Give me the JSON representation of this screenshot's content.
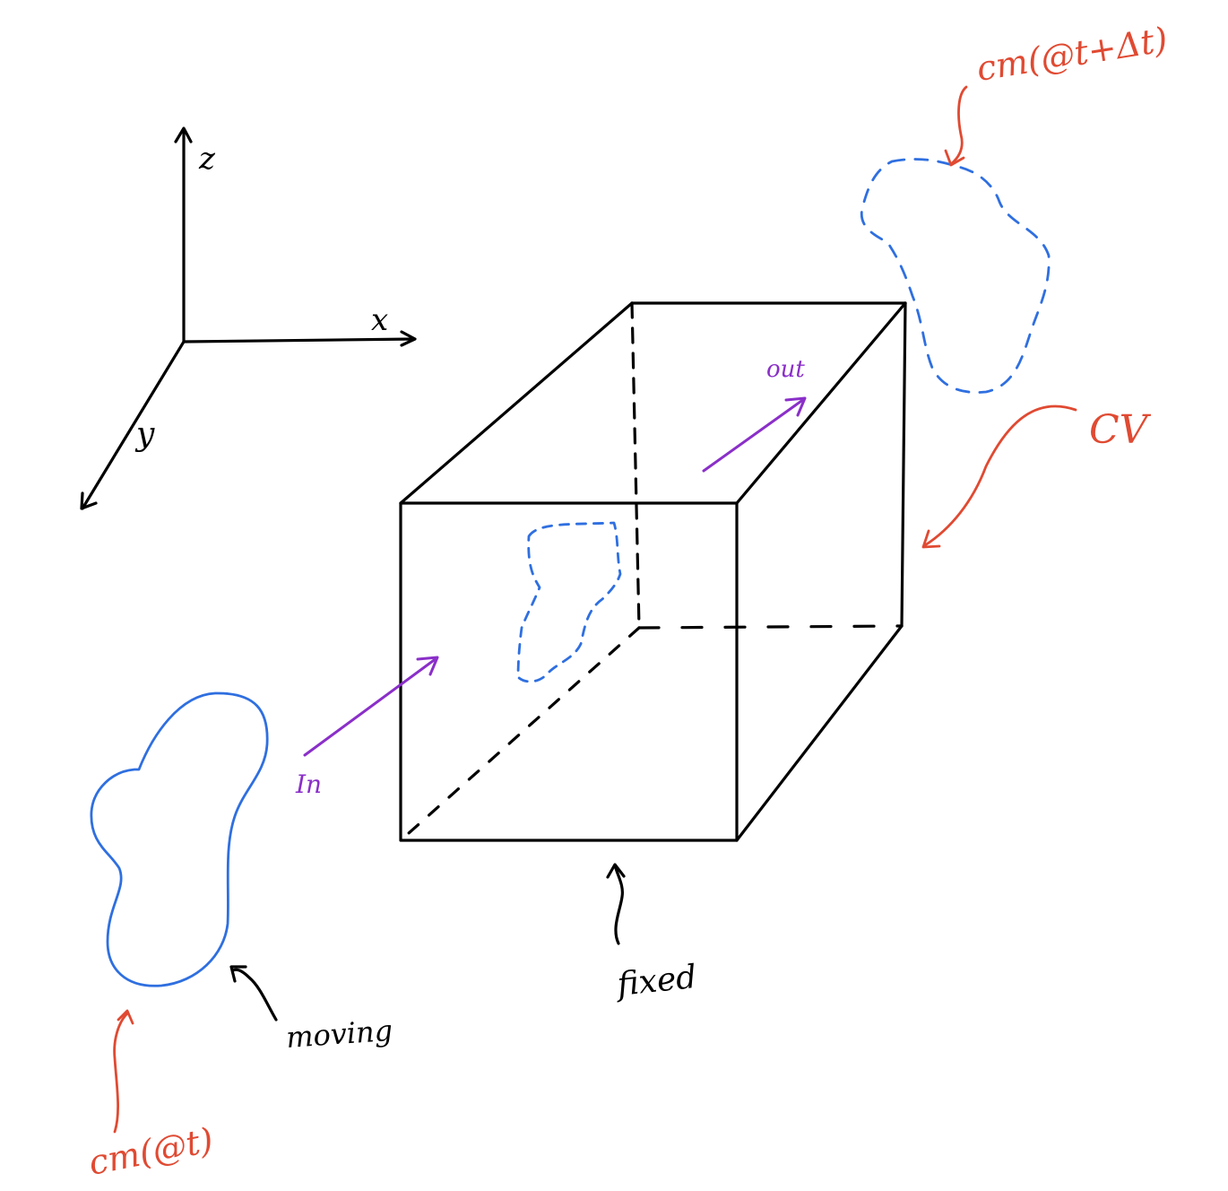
{
  "axes": {
    "z_label": "z",
    "x_label": "x",
    "y_label": "y"
  },
  "labels": {
    "in": "In",
    "out": "out",
    "cv": "CV",
    "cm_t": "cm(@t)",
    "cm_t_dt": "cm(@t+Δt)",
    "moving": "moving",
    "fixed": "fixed"
  },
  "colors": {
    "ink": "#000000",
    "blue": "#2f6fe0",
    "red": "#e04a32",
    "purple": "#8a2fc9"
  }
}
